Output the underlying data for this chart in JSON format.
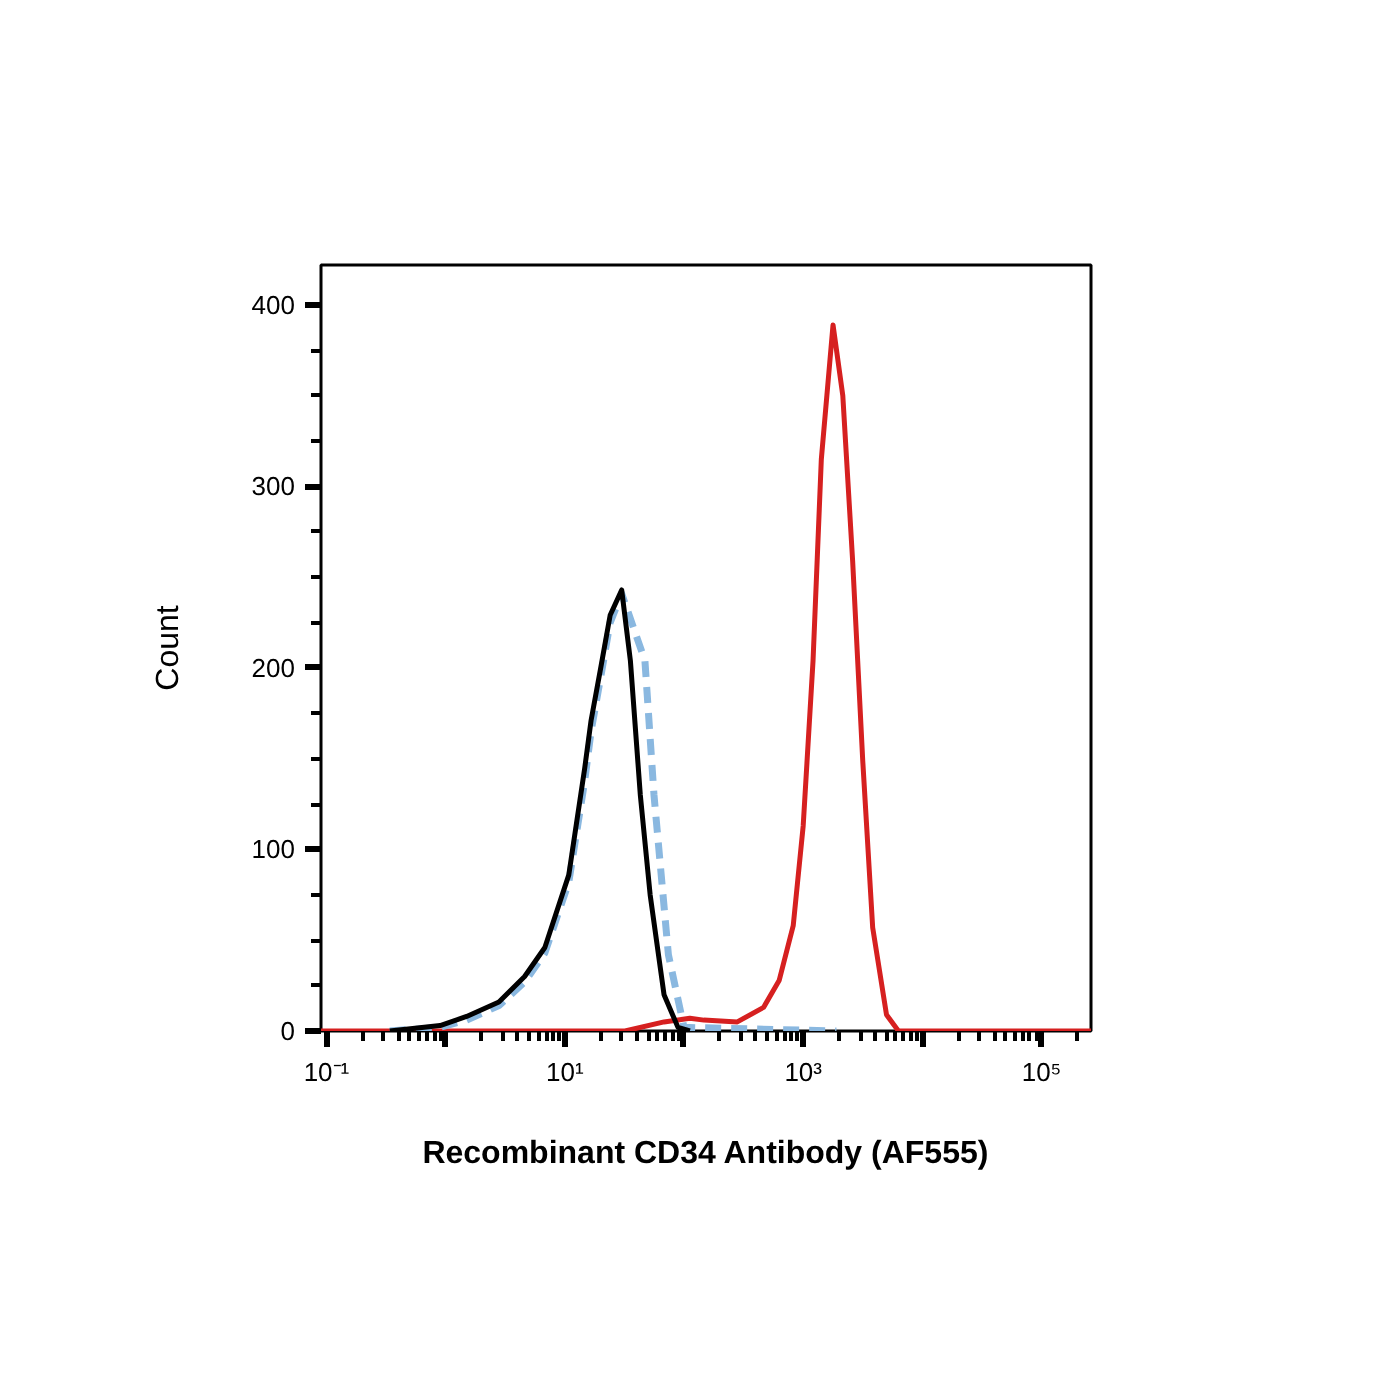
{
  "chart_data": {
    "type": "line",
    "xlabel": "Recombinant CD34 Antibody (AF555)",
    "ylabel": "Count",
    "log": "x",
    "grid": false,
    "xlim": [
      0.09,
      260000
    ],
    "ylim": [
      0,
      422
    ],
    "xticks": [
      {
        "value": 0.1,
        "label": "10⁻¹"
      },
      {
        "value": 1,
        "label": null
      },
      {
        "value": 10,
        "label": "10¹"
      },
      {
        "value": 100,
        "label": null
      },
      {
        "value": 1000,
        "label": "10³"
      },
      {
        "value": 10000,
        "label": null
      },
      {
        "value": 100000,
        "label": "10⁵"
      }
    ],
    "yticks": [
      0,
      100,
      200,
      300,
      400
    ],
    "series": [
      {
        "color": "#d62020",
        "line_style": "solid",
        "x": [
          0.09,
          32,
          68,
          112,
          147,
          280,
          465,
          630,
          825,
          1000,
          1210,
          1420,
          1780,
          2150,
          2600,
          3160,
          3830,
          5000,
          6300,
          260000
        ],
        "values": [
          0,
          0,
          5,
          7,
          6,
          5,
          13,
          28,
          58,
          113,
          204,
          315,
          389,
          350,
          259,
          149,
          57,
          9,
          0,
          0
        ]
      },
      {
        "color": "#8ab8e0",
        "line_style": "dashed",
        "x": [
          0.34,
          0.9,
          1.5,
          2.8,
          4.6,
          6.8,
          10.8,
          14.7,
          16.6,
          20,
          24,
          30,
          47,
          56,
          74,
          100,
          1900
        ],
        "values": [
          0,
          2,
          6,
          14,
          27,
          43,
          82,
          138,
          165,
          195,
          225,
          241,
          204,
          130,
          42,
          2,
          0
        ]
      },
      {
        "color": "#000000",
        "line_style": "solid",
        "x": [
          0.34,
          0.9,
          1.5,
          2.8,
          4.6,
          6.8,
          10.8,
          14.7,
          16.6,
          20,
          24,
          30,
          35.5,
          43,
          52,
          68,
          89,
          112
        ],
        "values": [
          0,
          3,
          8,
          16,
          30,
          46,
          86,
          145,
          171,
          200,
          229,
          243,
          204,
          130,
          75,
          20,
          2,
          0
        ]
      }
    ]
  }
}
